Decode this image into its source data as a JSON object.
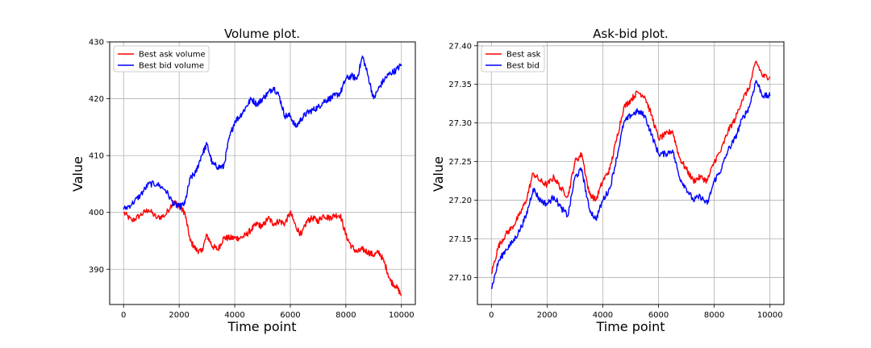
{
  "chart_data": [
    {
      "type": "line",
      "title": "Volume plot.",
      "xlabel": "Time point",
      "ylabel": "Value",
      "xlim": [
        -500,
        10500
      ],
      "ylim": [
        383.8,
        430
      ],
      "xticks": [
        0,
        2000,
        4000,
        6000,
        8000,
        10000
      ],
      "yticks": [
        390,
        400,
        410,
        420,
        430
      ],
      "grid": true,
      "legend_position": "top-left",
      "series": [
        {
          "name": "Best ask volume",
          "color": "#ff0000",
          "x": [
            0,
            300,
            600,
            900,
            1200,
            1500,
            1800,
            2000,
            2200,
            2400,
            2600,
            2800,
            3000,
            3200,
            3400,
            3600,
            3800,
            4000,
            4200,
            4400,
            4600,
            4800,
            5000,
            5200,
            5400,
            5600,
            5800,
            6000,
            6200,
            6400,
            6600,
            6800,
            7000,
            7200,
            7400,
            7600,
            7800,
            8000,
            8200,
            8400,
            8600,
            8800,
            9000,
            9200,
            9400,
            9600,
            9800,
            10000
          ],
          "values": [
            400,
            398.5,
            399.5,
            400.5,
            399,
            399.5,
            402,
            401,
            400,
            395,
            393.5,
            393,
            396,
            394,
            393.5,
            395.5,
            395.5,
            395.5,
            395.5,
            396,
            397,
            398,
            397.5,
            399,
            398,
            398.5,
            398,
            400,
            397.5,
            396,
            398.5,
            399,
            398.5,
            399.5,
            399,
            399.5,
            399.5,
            396,
            394,
            393,
            393.5,
            393,
            392.5,
            393,
            391,
            388,
            387,
            385.5
          ]
        },
        {
          "name": "Best bid volume",
          "color": "#0000ff",
          "x": [
            0,
            300,
            600,
            900,
            1200,
            1500,
            1800,
            2000,
            2200,
            2400,
            2600,
            2800,
            3000,
            3200,
            3400,
            3600,
            3800,
            4000,
            4200,
            4400,
            4600,
            4800,
            5000,
            5200,
            5400,
            5600,
            5800,
            6000,
            6200,
            6400,
            6600,
            6800,
            7000,
            7200,
            7400,
            7600,
            7800,
            8000,
            8200,
            8400,
            8600,
            8800,
            9000,
            9200,
            9400,
            9600,
            9800,
            10000
          ],
          "values": [
            400.5,
            401.5,
            403,
            405,
            405,
            404,
            401.5,
            401,
            401.5,
            406,
            407,
            410,
            412,
            408.5,
            408,
            408,
            413,
            416,
            417,
            418.5,
            420,
            419,
            420,
            421,
            422,
            420.5,
            417,
            417,
            415,
            416.5,
            417.5,
            418,
            418.5,
            419.5,
            420,
            420.5,
            421,
            423.5,
            424,
            423.5,
            427.5,
            424,
            420,
            422,
            423.5,
            424.5,
            425,
            426
          ]
        }
      ]
    },
    {
      "type": "line",
      "title": "Ask-bid plot.",
      "xlabel": "Time point",
      "ylabel": "Value",
      "xlim": [
        -500,
        10500
      ],
      "ylim": [
        27.065,
        27.405
      ],
      "xticks": [
        0,
        2000,
        4000,
        6000,
        8000,
        10000
      ],
      "yticks": [
        27.1,
        27.15,
        27.2,
        27.25,
        27.3,
        27.35,
        27.4
      ],
      "ytick_labels": [
        "27.10",
        "27.15",
        "27.20",
        "27.25",
        "27.30",
        "27.35",
        "27.40"
      ],
      "grid": true,
      "legend_position": "top-left",
      "series": [
        {
          "name": "Best ask",
          "color": "#ff0000",
          "x": [
            0,
            250,
            500,
            750,
            1000,
            1250,
            1500,
            1750,
            2000,
            2250,
            2500,
            2750,
            3000,
            3250,
            3500,
            3750,
            4000,
            4250,
            4500,
            4750,
            5000,
            5250,
            5500,
            5750,
            6000,
            6250,
            6500,
            6750,
            7000,
            7250,
            7500,
            7750,
            8000,
            8250,
            8500,
            8750,
            9000,
            9250,
            9500,
            9750,
            10000
          ],
          "values": [
            27.105,
            27.14,
            27.155,
            27.165,
            27.18,
            27.2,
            27.235,
            27.225,
            27.22,
            27.23,
            27.215,
            27.205,
            27.25,
            27.26,
            27.21,
            27.2,
            27.225,
            27.24,
            27.28,
            27.32,
            27.33,
            27.34,
            27.335,
            27.31,
            27.28,
            27.285,
            27.29,
            27.255,
            27.24,
            27.225,
            27.23,
            27.225,
            27.25,
            27.265,
            27.29,
            27.305,
            27.33,
            27.345,
            27.38,
            27.36,
            27.36
          ]
        },
        {
          "name": "Best bid",
          "color": "#0000ff",
          "x": [
            0,
            250,
            500,
            750,
            1000,
            1250,
            1500,
            1750,
            2000,
            2250,
            2500,
            2750,
            3000,
            3250,
            3500,
            3750,
            4000,
            4250,
            4500,
            4750,
            5000,
            5250,
            5500,
            5750,
            6000,
            6250,
            6500,
            6750,
            7000,
            7250,
            7500,
            7750,
            8000,
            8250,
            8500,
            8750,
            9000,
            9250,
            9500,
            9750,
            10000
          ],
          "values": [
            27.085,
            27.12,
            27.135,
            27.145,
            27.16,
            27.18,
            27.215,
            27.2,
            27.195,
            27.205,
            27.19,
            27.18,
            27.23,
            27.24,
            27.19,
            27.175,
            27.2,
            27.215,
            27.255,
            27.3,
            27.31,
            27.315,
            27.31,
            27.285,
            27.26,
            27.26,
            27.265,
            27.23,
            27.215,
            27.2,
            27.205,
            27.195,
            27.225,
            27.24,
            27.265,
            27.28,
            27.305,
            27.32,
            27.355,
            27.335,
            27.335
          ]
        }
      ]
    }
  ]
}
